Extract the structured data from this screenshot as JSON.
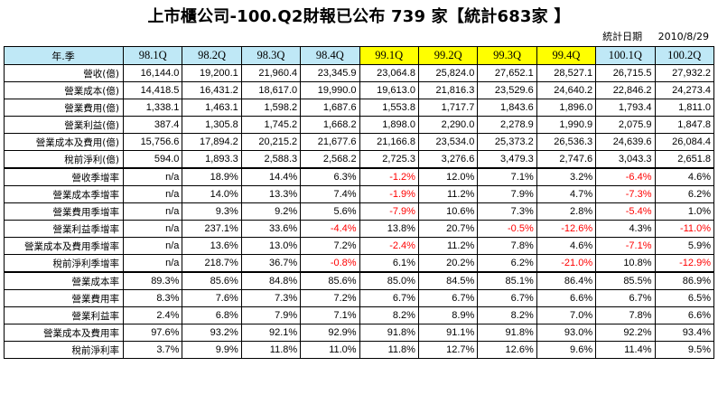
{
  "title": "上市櫃公司-100.Q2財報已公布 739 家【統計683家 】",
  "meta": {
    "label": "統計日期",
    "date": "2010/8/29"
  },
  "colors": {
    "header_blue": "#bfe8f6",
    "header_yellow": "#ffff00",
    "negative": "#ff0000"
  },
  "table": {
    "corner": "年.季",
    "columns": [
      {
        "label": "98.1Q",
        "color": "blue"
      },
      {
        "label": "98.2Q",
        "color": "blue"
      },
      {
        "label": "98.3Q",
        "color": "blue"
      },
      {
        "label": "98.4Q",
        "color": "blue"
      },
      {
        "label": "99.1Q",
        "color": "yellow"
      },
      {
        "label": "99.2Q",
        "color": "yellow"
      },
      {
        "label": "99.3Q",
        "color": "yellow"
      },
      {
        "label": "99.4Q",
        "color": "yellow"
      },
      {
        "label": "100.1Q",
        "color": "blue"
      },
      {
        "label": "100.2Q",
        "color": "blue"
      }
    ],
    "rows": [
      {
        "label": "營收(億)",
        "values": [
          "16,144.0",
          "19,200.1",
          "21,960.4",
          "23,345.9",
          "23,064.8",
          "25,824.0",
          "27,652.1",
          "28,527.1",
          "26,715.5",
          "27,932.2"
        ]
      },
      {
        "label": "營業成本(億)",
        "values": [
          "14,418.5",
          "16,431.2",
          "18,617.0",
          "19,990.0",
          "19,613.0",
          "21,816.3",
          "23,529.6",
          "24,640.2",
          "22,846.2",
          "24,273.4"
        ]
      },
      {
        "label": "營業費用(億)",
        "values": [
          "1,338.1",
          "1,463.1",
          "1,598.2",
          "1,687.6",
          "1,553.8",
          "1,717.7",
          "1,843.6",
          "1,896.0",
          "1,793.4",
          "1,811.0"
        ]
      },
      {
        "label": "營業利益(億)",
        "values": [
          "387.4",
          "1,305.8",
          "1,745.2",
          "1,668.2",
          "1,898.0",
          "2,290.0",
          "2,278.9",
          "1,990.9",
          "2,075.9",
          "1,847.8"
        ]
      },
      {
        "label": "營業成本及費用(億)",
        "values": [
          "15,756.6",
          "17,894.2",
          "20,215.2",
          "21,677.6",
          "21,166.8",
          "23,534.0",
          "25,373.2",
          "26,536.3",
          "24,639.6",
          "26,084.4"
        ]
      },
      {
        "label": "稅前淨利(億)",
        "values": [
          "594.0",
          "1,893.3",
          "2,588.3",
          "2,568.2",
          "2,725.3",
          "3,276.6",
          "3,479.3",
          "2,747.6",
          "3,043.3",
          "2,651.8"
        ]
      },
      {
        "label": "營收季增率",
        "sep": true,
        "values": [
          "n/a",
          "18.9%",
          "14.4%",
          "6.3%",
          "-1.2%",
          "12.0%",
          "7.1%",
          "3.2%",
          "-6.4%",
          "4.6%"
        ]
      },
      {
        "label": "營業成本季增率",
        "values": [
          "n/a",
          "14.0%",
          "13.3%",
          "7.4%",
          "-1.9%",
          "11.2%",
          "7.9%",
          "4.7%",
          "-7.3%",
          "6.2%"
        ]
      },
      {
        "label": "營業費用季增率",
        "values": [
          "n/a",
          "9.3%",
          "9.2%",
          "5.6%",
          "-7.9%",
          "10.6%",
          "7.3%",
          "2.8%",
          "-5.4%",
          "1.0%"
        ]
      },
      {
        "label": "營業利益季增率",
        "values": [
          "n/a",
          "237.1%",
          "33.6%",
          "-4.4%",
          "13.8%",
          "20.7%",
          "-0.5%",
          "-12.6%",
          "4.3%",
          "-11.0%"
        ]
      },
      {
        "label": "營業成本及費用季增率",
        "values": [
          "n/a",
          "13.6%",
          "13.0%",
          "7.2%",
          "-2.4%",
          "11.2%",
          "7.8%",
          "4.6%",
          "-7.1%",
          "5.9%"
        ]
      },
      {
        "label": "稅前淨利季增率",
        "values": [
          "n/a",
          "218.7%",
          "36.7%",
          "-0.8%",
          "6.1%",
          "20.2%",
          "6.2%",
          "-21.0%",
          "10.8%",
          "-12.9%"
        ]
      },
      {
        "label": "營業成本率",
        "sep": true,
        "values": [
          "89.3%",
          "85.6%",
          "84.8%",
          "85.6%",
          "85.0%",
          "84.5%",
          "85.1%",
          "86.4%",
          "85.5%",
          "86.9%"
        ]
      },
      {
        "label": "營業費用率",
        "values": [
          "8.3%",
          "7.6%",
          "7.3%",
          "7.2%",
          "6.7%",
          "6.7%",
          "6.7%",
          "6.6%",
          "6.7%",
          "6.5%"
        ]
      },
      {
        "label": "營業利益率",
        "values": [
          "2.4%",
          "6.8%",
          "7.9%",
          "7.1%",
          "8.2%",
          "8.9%",
          "8.2%",
          "7.0%",
          "7.8%",
          "6.6%"
        ]
      },
      {
        "label": "營業成本及費用率",
        "values": [
          "97.6%",
          "93.2%",
          "92.1%",
          "92.9%",
          "91.8%",
          "91.1%",
          "91.8%",
          "93.0%",
          "92.2%",
          "93.4%"
        ]
      },
      {
        "label": "稅前淨利率",
        "values": [
          "3.7%",
          "9.9%",
          "11.8%",
          "11.0%",
          "11.8%",
          "12.7%",
          "12.6%",
          "9.6%",
          "11.4%",
          "9.5%"
        ]
      }
    ]
  }
}
